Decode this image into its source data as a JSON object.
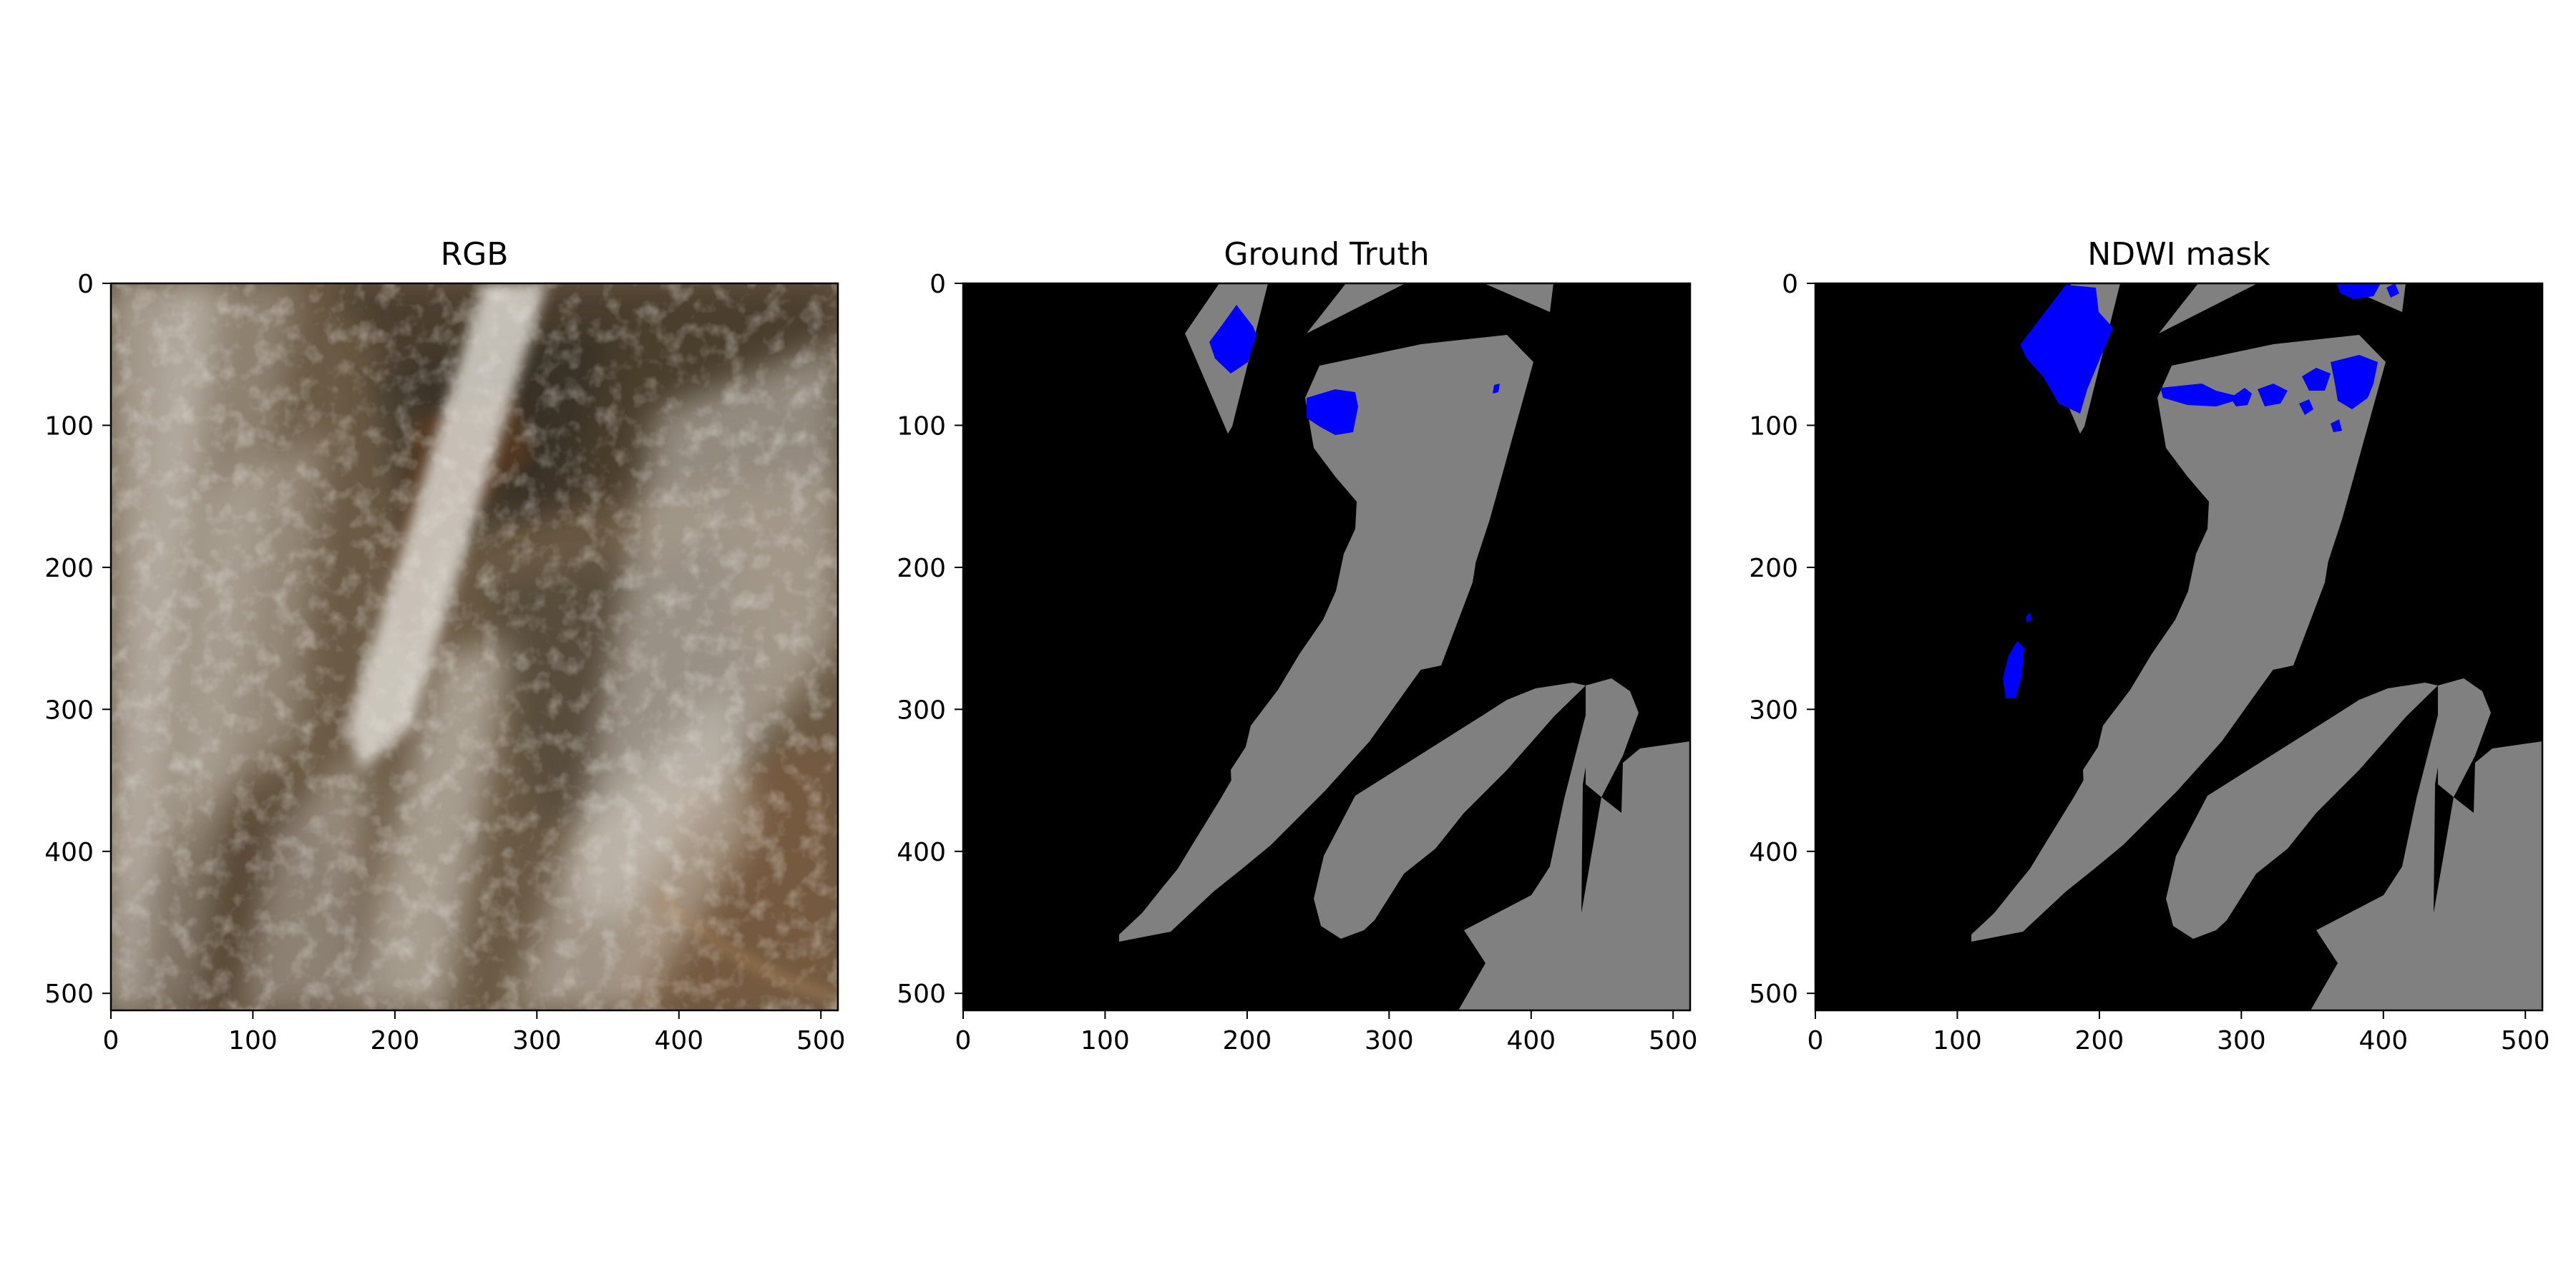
{
  "figure": {
    "panels": [
      {
        "title": "RGB",
        "kind": "rgb"
      },
      {
        "title": "Ground Truth",
        "kind": "ground_truth"
      },
      {
        "title": "NDWI mask",
        "kind": "ndwi_mask"
      }
    ],
    "x_ticks": [
      "0",
      "100",
      "200",
      "300",
      "400",
      "500"
    ],
    "y_ticks": [
      "0",
      "100",
      "200",
      "300",
      "400",
      "500"
    ],
    "image_extent": [
      0,
      512
    ],
    "colors": {
      "water": "#0000ff",
      "valid_land": "#808080",
      "no_data": "#000000",
      "rgb_soil": "#6b5a45",
      "rgb_cloud": "#d8d4cc"
    }
  }
}
